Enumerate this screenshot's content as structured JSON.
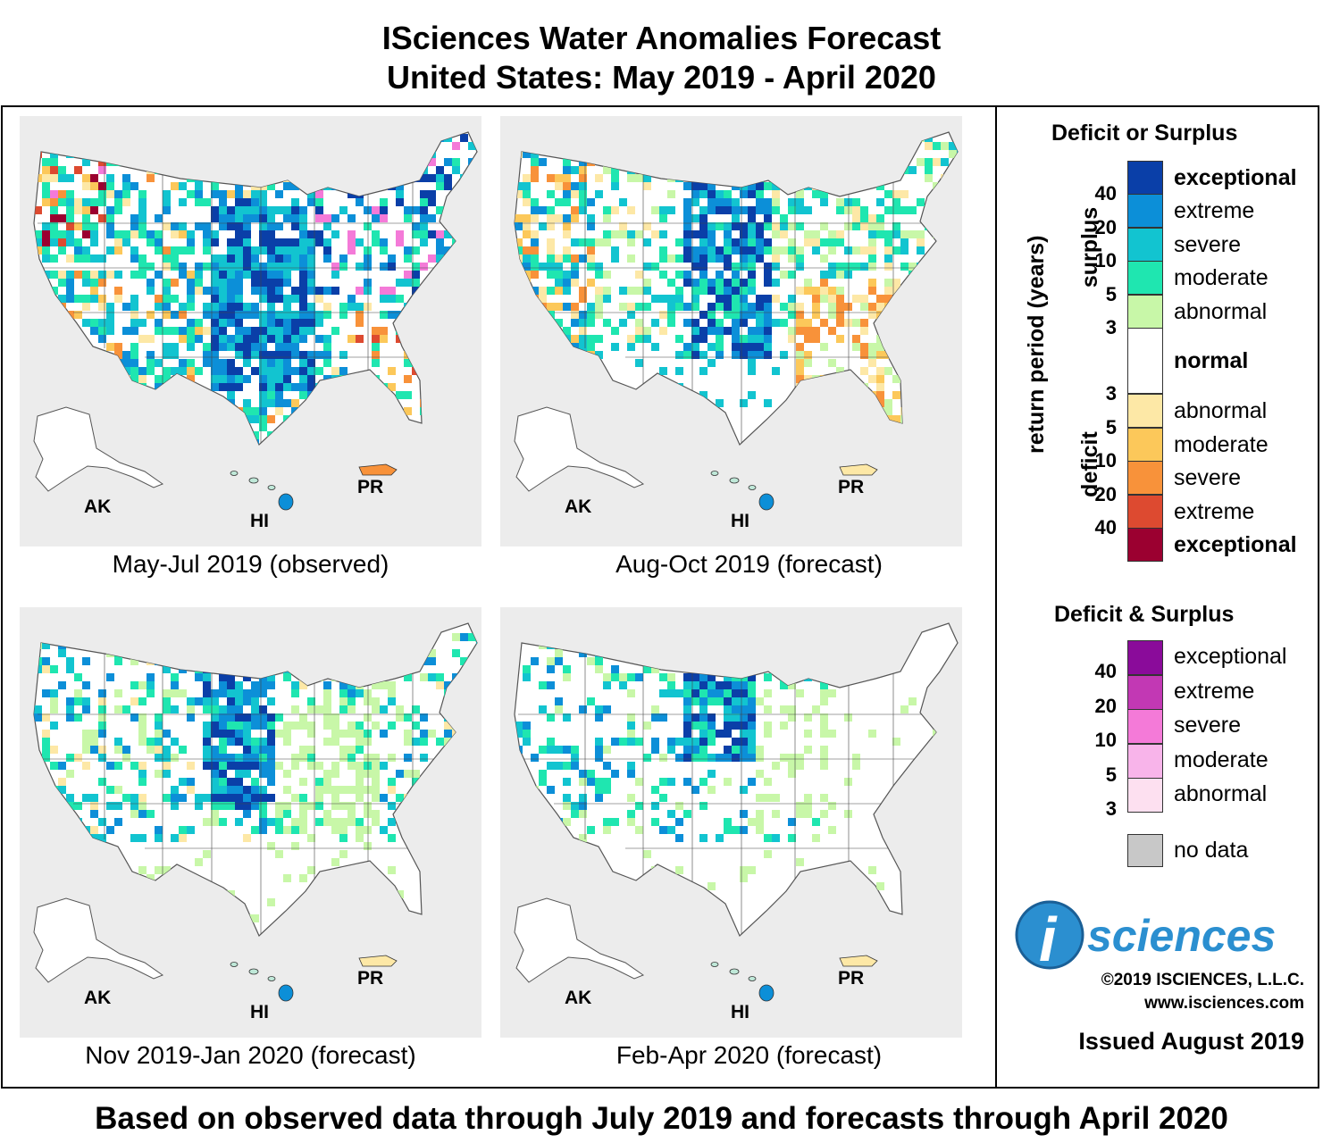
{
  "title": {
    "line1": "ISciences Water Anomalies Forecast",
    "line2": "United States: May 2019 - April 2020"
  },
  "panels": [
    {
      "caption": "May-Jul 2019 (observed)",
      "scenario": "observed"
    },
    {
      "caption": "Aug-Oct 2019 (forecast)",
      "scenario": "f1"
    },
    {
      "caption": "Nov 2019-Jan 2020 (forecast)",
      "scenario": "f2"
    },
    {
      "caption": "Feb-Apr 2020 (forecast)",
      "scenario": "f3"
    }
  ],
  "map_labels": {
    "ak": "AK",
    "hi": "HI",
    "pr": "PR"
  },
  "legend": {
    "heading_single": "Deficit or Surplus",
    "heading_combined": "Deficit & Surplus",
    "axis_label": "return period (years)",
    "surplus_label": "surplus",
    "deficit_label": "deficit",
    "surplus_ticks": [
      "40",
      "20",
      "10",
      "5",
      "3"
    ],
    "deficit_ticks": [
      "3",
      "5",
      "10",
      "20",
      "40"
    ],
    "combined_ticks": [
      "40",
      "20",
      "10",
      "5",
      "3"
    ],
    "surplus": [
      {
        "label": "exceptional",
        "color": "#0a3fa8"
      },
      {
        "label": "extreme",
        "color": "#0c8fd8"
      },
      {
        "label": "severe",
        "color": "#12c4d0"
      },
      {
        "label": "moderate",
        "color": "#1fe6b0"
      },
      {
        "label": "abnormal",
        "color": "#c8f7a8"
      }
    ],
    "normal": {
      "label": "normal",
      "color": "#ffffff"
    },
    "deficit": [
      {
        "label": "abnormal",
        "color": "#fde8a6"
      },
      {
        "label": "moderate",
        "color": "#fcc85a"
      },
      {
        "label": "severe",
        "color": "#f8923a"
      },
      {
        "label": "extreme",
        "color": "#dd4a30"
      },
      {
        "label": "exceptional",
        "color": "#9b0030"
      }
    ],
    "combined": [
      {
        "label": "exceptional",
        "color": "#8a0b9a"
      },
      {
        "label": "extreme",
        "color": "#c238b4"
      },
      {
        "label": "severe",
        "color": "#f47ad8"
      },
      {
        "label": "moderate",
        "color": "#f8b4ea"
      },
      {
        "label": "abnormal",
        "color": "#fde0f0"
      }
    ],
    "no_data": {
      "label": "no data",
      "color": "#c8c8c8"
    }
  },
  "logo": {
    "letter": "i",
    "text": "sciences",
    "color": "#2b8fd0"
  },
  "copyright": "©2019 ISCIENCES, L.L.C.",
  "website": "www.isciences.com",
  "issued": "Issued August 2019",
  "footer": "Based on observed data through July 2019 and forecasts through April 2020"
}
